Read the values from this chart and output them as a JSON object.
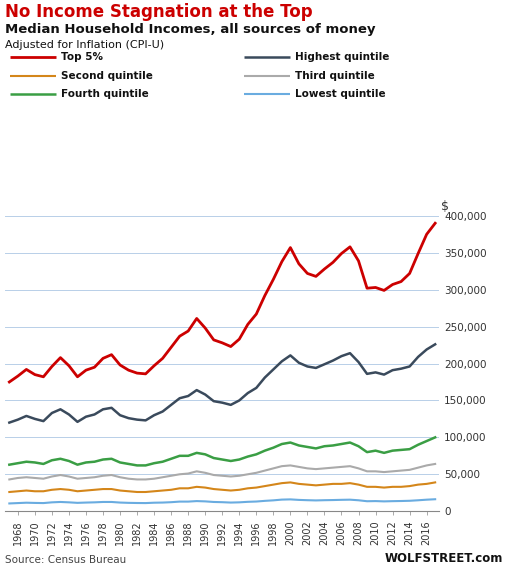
{
  "title1": "No Income Stagnation at the Top",
  "title2": "Median Household Incomes, all sources of money",
  "title3": "Adjusted for Inflation (CPI-U)",
  "source": "Source: Census Bureau",
  "watermark": "WOLFSTREET.com",
  "ylabel": "$",
  "years": [
    1967,
    1968,
    1969,
    1970,
    1971,
    1972,
    1973,
    1974,
    1975,
    1976,
    1977,
    1978,
    1979,
    1980,
    1981,
    1982,
    1983,
    1984,
    1985,
    1986,
    1987,
    1988,
    1989,
    1990,
    1991,
    1992,
    1993,
    1994,
    1995,
    1996,
    1997,
    1998,
    1999,
    2000,
    2001,
    2002,
    2003,
    2004,
    2005,
    2006,
    2007,
    2008,
    2009,
    2010,
    2011,
    2012,
    2013,
    2014,
    2015,
    2016,
    2017
  ],
  "top5": [
    175000,
    183000,
    192000,
    185000,
    182000,
    196000,
    208000,
    197000,
    182000,
    191000,
    195000,
    207000,
    212000,
    198000,
    191000,
    187000,
    186000,
    197000,
    207000,
    222000,
    237000,
    244000,
    261000,
    248000,
    232000,
    228000,
    223000,
    233000,
    253000,
    267000,
    292000,
    314000,
    338000,
    357000,
    335000,
    322000,
    318000,
    328000,
    337000,
    349000,
    358000,
    339000,
    302000,
    303000,
    299000,
    307000,
    311000,
    322000,
    349000,
    375000,
    390000
  ],
  "highest": [
    120000,
    124000,
    129000,
    125000,
    122000,
    133000,
    138000,
    131000,
    121000,
    128000,
    131000,
    138000,
    140000,
    130000,
    126000,
    124000,
    123000,
    130000,
    135000,
    144000,
    153000,
    156000,
    164000,
    158000,
    149000,
    147000,
    144000,
    150000,
    160000,
    167000,
    181000,
    192000,
    203000,
    211000,
    201000,
    196000,
    194000,
    199000,
    204000,
    210000,
    214000,
    202000,
    186000,
    188000,
    185000,
    191000,
    193000,
    196000,
    209000,
    219000,
    226000
  ],
  "fourth": [
    63000,
    65000,
    67000,
    66000,
    64000,
    69000,
    71000,
    68000,
    63000,
    66000,
    67000,
    70000,
    71000,
    66000,
    64000,
    62000,
    62000,
    65000,
    67000,
    71000,
    75000,
    75000,
    79000,
    77000,
    72000,
    70000,
    68000,
    70000,
    74000,
    77000,
    82000,
    86000,
    91000,
    93000,
    89000,
    87000,
    85000,
    88000,
    89000,
    91000,
    93000,
    88000,
    80000,
    82000,
    79000,
    82000,
    83000,
    84000,
    90000,
    95000,
    100000
  ],
  "third": [
    43000,
    45000,
    46000,
    45000,
    44000,
    47000,
    49000,
    47000,
    44000,
    45000,
    46000,
    48000,
    49000,
    46000,
    44000,
    43000,
    43000,
    44000,
    46000,
    48000,
    50000,
    51000,
    54000,
    52000,
    49000,
    48000,
    47000,
    48000,
    50000,
    52000,
    55000,
    58000,
    61000,
    62000,
    60000,
    58000,
    57000,
    58000,
    59000,
    60000,
    61000,
    58000,
    54000,
    54000,
    53000,
    54000,
    55000,
    56000,
    59000,
    62000,
    64000
  ],
  "second": [
    26000,
    27000,
    28000,
    27000,
    27000,
    29000,
    30000,
    29000,
    27000,
    28000,
    29000,
    30000,
    30000,
    28000,
    27000,
    26000,
    26000,
    27000,
    28000,
    29000,
    31000,
    31000,
    33000,
    32000,
    30000,
    29000,
    28000,
    29000,
    31000,
    32000,
    34000,
    36000,
    38000,
    39000,
    37000,
    36000,
    35000,
    36000,
    37000,
    37000,
    38000,
    36000,
    33000,
    33000,
    32000,
    33000,
    33000,
    34000,
    36000,
    37000,
    39000
  ],
  "lowest": [
    10500,
    11000,
    11500,
    11200,
    11000,
    12000,
    12500,
    12000,
    11300,
    11700,
    12000,
    12500,
    12500,
    11700,
    11300,
    11100,
    11000,
    11500,
    11700,
    12200,
    13000,
    13000,
    13700,
    13300,
    12500,
    12200,
    11700,
    12000,
    12700,
    13100,
    14000,
    14700,
    15700,
    16000,
    15300,
    14900,
    14600,
    14900,
    15100,
    15400,
    15600,
    14800,
    13500,
    13700,
    13300,
    13600,
    13800,
    14100,
    14800,
    15600,
    16200
  ],
  "colors": {
    "top5": "#cc0000",
    "highest": "#3a4a5c",
    "fourth": "#3a9e44",
    "third": "#aaaaaa",
    "second": "#d4861a",
    "lowest": "#6aace0"
  },
  "ylim": [
    0,
    400000
  ],
  "yticks": [
    0,
    50000,
    100000,
    150000,
    200000,
    250000,
    300000,
    350000,
    400000
  ],
  "background_color": "#ffffff",
  "grid_color": "#b8cfe8"
}
